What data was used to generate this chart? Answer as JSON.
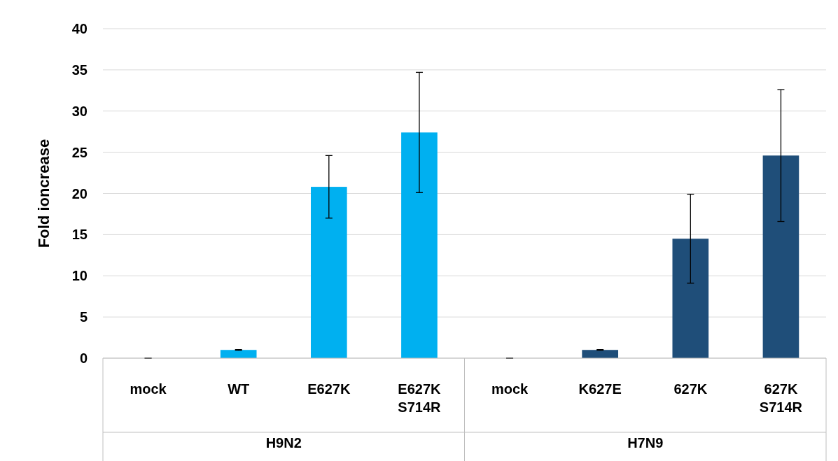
{
  "chart_data": {
    "type": "bar",
    "ylabel": "Fold ioncrease",
    "categories": [
      "mock",
      "WT",
      "E627K",
      "E627K\nS714R",
      "mock",
      "K627E",
      "627K",
      "627K\nS714R"
    ],
    "values": [
      0,
      1.0,
      20.8,
      27.4,
      0,
      1.0,
      14.5,
      24.6
    ],
    "errors": [
      0.02,
      0.05,
      3.8,
      7.3,
      0.02,
      0.05,
      5.4,
      8.0
    ],
    "colors": [
      "#00b0f0",
      "#00b0f0",
      "#00b0f0",
      "#00b0f0",
      "#1f4e79",
      "#1f4e79",
      "#1f4e79",
      "#1f4e79"
    ],
    "annotations": [
      "H9N2",
      "H7N9"
    ],
    "ylim": [
      0,
      40
    ],
    "yticks": [
      0,
      5,
      10,
      15,
      20,
      25,
      30,
      35,
      40
    ],
    "grid": "y"
  }
}
